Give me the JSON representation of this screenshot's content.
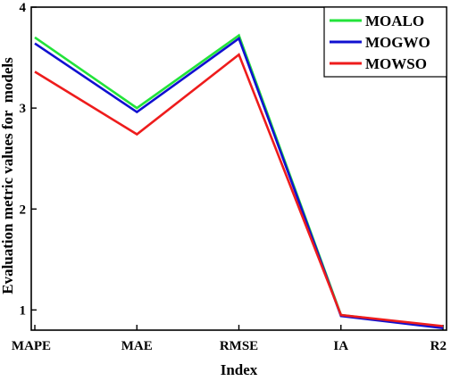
{
  "chart_data": {
    "type": "line",
    "categories": [
      "MAPE",
      "MAE",
      "RMSE",
      "IA",
      "R2"
    ],
    "series": [
      {
        "name": "MOALO",
        "color": "#22e33a",
        "values": [
          3.7,
          3.0,
          3.72,
          0.95,
          0.83
        ]
      },
      {
        "name": "MOGWO",
        "color": "#1010d0",
        "values": [
          3.64,
          2.96,
          3.69,
          0.94,
          0.82
        ]
      },
      {
        "name": "MOWSO",
        "color": "#ee1c1c",
        "values": [
          3.36,
          2.74,
          3.53,
          0.95,
          0.84
        ]
      }
    ],
    "xlabel": "Index",
    "ylabel": "Evaluation metric values for  models",
    "ylim": [
      0.8,
      4
    ],
    "yticks": [
      1,
      2,
      3,
      4
    ],
    "legend_position": "top-right",
    "grid": false
  }
}
